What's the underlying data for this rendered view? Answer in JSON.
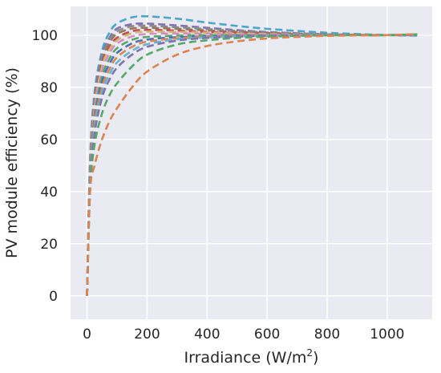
{
  "chart_data": {
    "type": "line",
    "title": "",
    "xlabel": "Irradiance (W/m",
    "xlabel_superscript": "2",
    "xlabel_suffix": ")",
    "ylabel": "PV module efficiency (%)",
    "xlim": [
      -55,
      1150
    ],
    "ylim": [
      -9,
      111
    ],
    "xticks": [
      0,
      200,
      400,
      600,
      800,
      1000
    ],
    "yticks": [
      0,
      20,
      40,
      60,
      80,
      100
    ],
    "grid": true,
    "legend": "none",
    "style": {
      "background": "#eaeaf2",
      "grid_color": "#ffffff",
      "line_style": "dashed"
    },
    "x": [
      0,
      10,
      25,
      50,
      75,
      100,
      150,
      200,
      300,
      400,
      500,
      600,
      700,
      800,
      900,
      1000,
      1100
    ],
    "series": [
      {
        "color": "#4aa7c9",
        "values": [
          0,
          52,
          78,
          94,
          101,
          104.5,
          106.8,
          107.2,
          106.3,
          104.8,
          103.5,
          102.4,
          101.6,
          100.9,
          100.4,
          100.0,
          99.8
        ]
      },
      {
        "color": "#8172b2",
        "values": [
          0,
          51,
          76,
          92,
          99,
          102.5,
          104.2,
          104.4,
          103.7,
          102.8,
          101.9,
          101.2,
          100.7,
          100.3,
          100.1,
          100.0,
          100.0
        ]
      },
      {
        "color": "#8c8c8c",
        "values": [
          0,
          50,
          75,
          91,
          98,
          101.5,
          103.4,
          103.6,
          103.0,
          102.3,
          101.6,
          101.0,
          100.6,
          100.3,
          100.1,
          100.0,
          100.0
        ]
      },
      {
        "color": "#937860",
        "values": [
          0,
          49,
          74,
          90,
          97,
          100.5,
          102.5,
          102.8,
          102.4,
          101.8,
          101.2,
          100.8,
          100.4,
          100.2,
          100.1,
          100.0,
          100.0
        ]
      },
      {
        "color": "#c44e52",
        "values": [
          0,
          48,
          73,
          89,
          95.5,
          99.0,
          101.5,
          102.0,
          101.7,
          101.2,
          100.8,
          100.5,
          100.3,
          100.1,
          100.0,
          100.0,
          100.0
        ]
      },
      {
        "color": "#ccb974",
        "values": [
          0,
          47,
          72,
          88,
          94.5,
          98.0,
          100.7,
          101.3,
          101.2,
          100.9,
          100.6,
          100.4,
          100.2,
          100.1,
          100.0,
          100.0,
          100.0
        ]
      },
      {
        "color": "#da8bc3",
        "values": [
          0,
          46,
          71,
          86,
          93,
          96.8,
          99.5,
          100.4,
          100.6,
          100.5,
          100.3,
          100.2,
          100.1,
          100.0,
          100.0,
          100.0,
          100.1
        ]
      },
      {
        "color": "#55a868",
        "values": [
          0,
          45,
          69,
          84,
          91,
          95.0,
          98.2,
          99.3,
          99.8,
          99.9,
          99.9,
          99.9,
          99.9,
          100.0,
          100.0,
          100.0,
          100.1
        ]
      },
      {
        "color": "#4c72b0",
        "values": [
          0,
          44,
          67,
          82,
          89,
          93.2,
          96.8,
          98.3,
          99.2,
          99.5,
          99.7,
          99.8,
          99.9,
          100.0,
          100.0,
          100.0,
          100.1
        ]
      },
      {
        "color": "#dd8452",
        "values": [
          0,
          43,
          66,
          80,
          87,
          91.5,
          95.5,
          97.5,
          98.8,
          99.3,
          99.6,
          99.8,
          99.9,
          100.0,
          100.0,
          100.0,
          100.2
        ]
      },
      {
        "color": "#64b5cd",
        "values": [
          0,
          42,
          64,
          78,
          85,
          89.5,
          94.0,
          96.5,
          98.4,
          99.1,
          99.5,
          99.7,
          99.9,
          100.0,
          100.0,
          100.0,
          100.2
        ]
      },
      {
        "color": "#8172b2",
        "values": [
          0,
          41,
          62,
          76,
          83,
          87.5,
          92.5,
          95.5,
          97.9,
          98.9,
          99.4,
          99.7,
          99.9,
          100.0,
          100.0,
          100.0,
          100.2
        ]
      },
      {
        "color": "#55a868",
        "values": [
          0,
          40,
          58,
          70,
          77,
          81.5,
          88.0,
          92.5,
          96.4,
          98.0,
          98.9,
          99.4,
          99.7,
          99.9,
          100.0,
          100.0,
          100.3
        ]
      },
      {
        "color": "#dd8452",
        "values": [
          0,
          40,
          50,
          60,
          67,
          72.0,
          80.0,
          86.0,
          92.5,
          95.8,
          97.6,
          98.7,
          99.3,
          99.7,
          99.9,
          100.0,
          100.4
        ]
      }
    ]
  }
}
